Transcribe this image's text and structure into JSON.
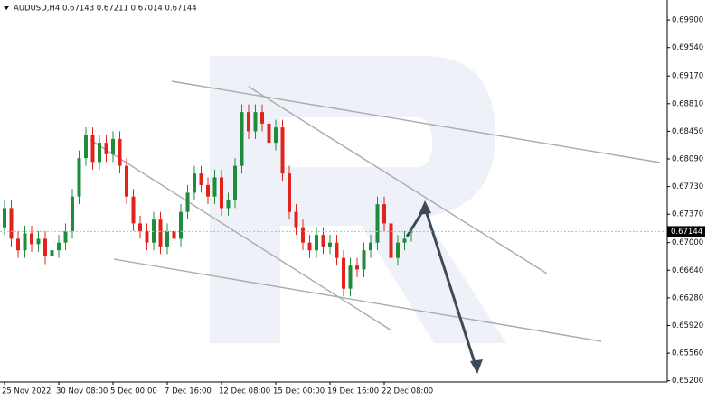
{
  "chart_data": {
    "type": "candlestick",
    "title": "AUDUSD,H4  0.67143 0.67211 0.67014 0.67144",
    "categories": [
      "25 Nov 2022",
      null,
      null,
      null,
      null,
      null,
      null,
      null,
      "30 Nov 08:00",
      null,
      null,
      null,
      null,
      null,
      null,
      null,
      "5 Dec 00:00",
      null,
      null,
      null,
      null,
      null,
      null,
      null,
      "7 Dec 16:00",
      null,
      null,
      null,
      null,
      null,
      null,
      null,
      "12 Dec 08:00",
      null,
      null,
      null,
      null,
      null,
      null,
      null,
      "15 Dec 00:00",
      null,
      null,
      null,
      null,
      null,
      null,
      null,
      "19 Dec 16:00",
      null,
      null,
      null,
      null,
      null,
      null,
      null,
      "22 Dec 08:00",
      null,
      null,
      null,
      null
    ],
    "open": [
      0.672,
      0.6745,
      0.6705,
      0.669,
      0.6712,
      0.6698,
      0.6705,
      0.6682,
      0.669,
      0.67,
      0.6715,
      0.676,
      0.681,
      0.684,
      0.6805,
      0.683,
      0.6815,
      0.6835,
      0.68,
      0.676,
      0.6725,
      0.6715,
      0.67,
      0.673,
      0.6695,
      0.6715,
      0.6705,
      0.674,
      0.6765,
      0.679,
      0.6775,
      0.676,
      0.6785,
      0.6745,
      0.6755,
      0.68,
      0.687,
      0.6845,
      0.687,
      0.6855,
      0.683,
      0.685,
      0.679,
      0.674,
      0.672,
      0.67,
      0.669,
      0.671,
      0.6695,
      0.67,
      0.668,
      0.664,
      0.667,
      0.6665,
      0.669,
      0.67,
      0.675,
      0.6725,
      0.668,
      0.67,
      0.67143
    ],
    "high": [
      0.6755,
      0.6755,
      0.6715,
      0.6722,
      0.6722,
      0.6715,
      0.6715,
      0.67,
      0.671,
      0.6725,
      0.677,
      0.682,
      0.685,
      0.685,
      0.684,
      0.684,
      0.6845,
      0.6845,
      0.681,
      0.677,
      0.6735,
      0.6725,
      0.674,
      0.674,
      0.6725,
      0.6725,
      0.675,
      0.6775,
      0.68,
      0.68,
      0.6785,
      0.6795,
      0.6795,
      0.6765,
      0.681,
      0.688,
      0.688,
      0.688,
      0.688,
      0.6865,
      0.686,
      0.686,
      0.68,
      0.675,
      0.673,
      0.671,
      0.672,
      0.672,
      0.671,
      0.671,
      0.669,
      0.668,
      0.668,
      0.67,
      0.671,
      0.676,
      0.676,
      0.6735,
      0.671,
      0.6715,
      0.67211
    ],
    "low": [
      0.671,
      0.6695,
      0.668,
      0.668,
      0.6688,
      0.6688,
      0.6672,
      0.6672,
      0.668,
      0.669,
      0.6705,
      0.675,
      0.68,
      0.6795,
      0.6795,
      0.6805,
      0.6805,
      0.679,
      0.675,
      0.6715,
      0.6705,
      0.669,
      0.669,
      0.6685,
      0.6685,
      0.6695,
      0.6695,
      0.673,
      0.6755,
      0.6765,
      0.675,
      0.675,
      0.6735,
      0.6735,
      0.6745,
      0.679,
      0.6835,
      0.6835,
      0.6845,
      0.682,
      0.682,
      0.678,
      0.673,
      0.671,
      0.669,
      0.668,
      0.668,
      0.6685,
      0.6685,
      0.667,
      0.663,
      0.663,
      0.6655,
      0.6655,
      0.668,
      0.669,
      0.6715,
      0.667,
      0.667,
      0.669,
      0.67014
    ],
    "close": [
      0.6745,
      0.6705,
      0.669,
      0.6712,
      0.6698,
      0.6705,
      0.6682,
      0.669,
      0.67,
      0.6715,
      0.676,
      0.681,
      0.684,
      0.6805,
      0.683,
      0.6815,
      0.6835,
      0.68,
      0.676,
      0.6725,
      0.6715,
      0.67,
      0.673,
      0.6695,
      0.6715,
      0.6705,
      0.674,
      0.6765,
      0.679,
      0.6775,
      0.676,
      0.6785,
      0.6745,
      0.6755,
      0.68,
      0.687,
      0.6845,
      0.687,
      0.6855,
      0.683,
      0.685,
      0.679,
      0.674,
      0.672,
      0.67,
      0.669,
      0.671,
      0.6695,
      0.67,
      0.668,
      0.664,
      0.667,
      0.6665,
      0.669,
      0.67,
      0.675,
      0.6725,
      0.668,
      0.67,
      0.6705,
      0.67144
    ],
    "up_color": "#1e8c3c",
    "down_color": "#e0241c",
    "ylim": [
      0.65185,
      0.7016
    ],
    "yticks": [
      {
        "value": 0.699,
        "label": "0.69900"
      },
      {
        "value": 0.6954,
        "label": "0.69540"
      },
      {
        "value": 0.6917,
        "label": "0.69170"
      },
      {
        "value": 0.6881,
        "label": "0.68810"
      },
      {
        "value": 0.6845,
        "label": "0.68450"
      },
      {
        "value": 0.6809,
        "label": "0.68090"
      },
      {
        "value": 0.6773,
        "label": "0.67730"
      },
      {
        "value": 0.6737,
        "label": "0.67370"
      },
      {
        "value": 0.67,
        "label": "0.67000"
      },
      {
        "value": 0.6664,
        "label": "0.66640"
      },
      {
        "value": 0.6628,
        "label": "0.66280"
      },
      {
        "value": 0.6592,
        "label": "0.65920"
      },
      {
        "value": 0.6556,
        "label": "0.65560"
      },
      {
        "value": 0.652,
        "label": "0.65200"
      }
    ]
  }
}
